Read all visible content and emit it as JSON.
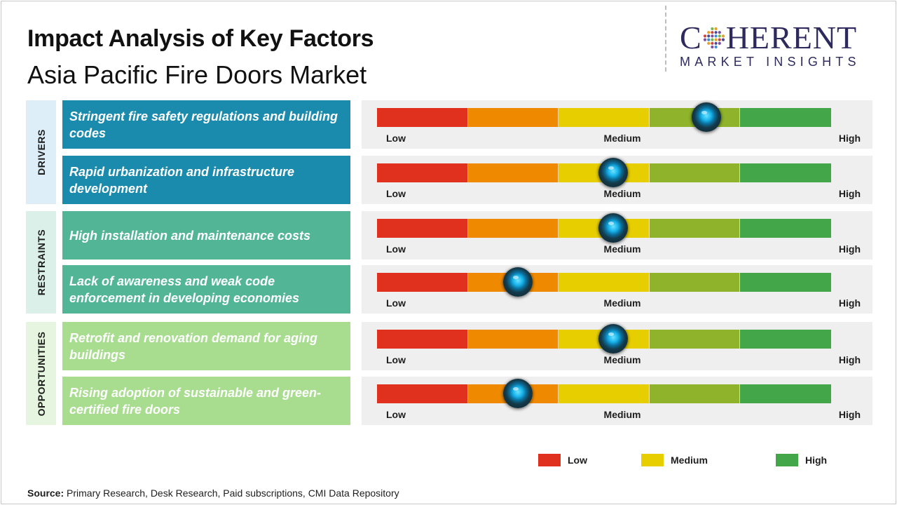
{
  "header": {
    "title": "Impact Analysis of Key Factors",
    "subtitle": "Asia Pacific Fire Doors Market"
  },
  "logo": {
    "line1_start": "C",
    "line1_end": "HERENT",
    "line2": "MARKET INSIGHTS"
  },
  "colors": {
    "drivers_category_bg": "#ddeef8",
    "drivers_factor_bg": "#1a8aad",
    "restraints_category_bg": "#dcf0ea",
    "restraints_factor_bg": "#52b596",
    "opportunities_category_bg": "#e6f5df",
    "opportunities_factor_bg": "#a8dd90",
    "gauge_segments": [
      "#e0301e",
      "#ef8a00",
      "#e7ce00",
      "#8fb32a",
      "#43a74a"
    ]
  },
  "chart_data": {
    "type": "gauge",
    "scale": [
      "Low",
      "Medium",
      "High"
    ],
    "categories": [
      {
        "name": "DRIVERS",
        "factors": [
          {
            "label": "Stringent fire safety regulations and building codes",
            "impact": 0.725
          },
          {
            "label": "Rapid urbanization and infrastructure development",
            "impact": 0.52
          }
        ]
      },
      {
        "name": "RESTRAINTS",
        "factors": [
          {
            "label": "High installation and maintenance costs",
            "impact": 0.52
          },
          {
            "label": "Lack of awareness and weak code enforcement in developing economies",
            "impact": 0.31
          }
        ]
      },
      {
        "name": "OPPORTUNITIES",
        "factors": [
          {
            "label": "Retrofit and renovation demand for aging buildings",
            "impact": 0.52
          },
          {
            "label": "Rising adoption of sustainable and green-certified fire doors",
            "impact": 0.31
          }
        ]
      }
    ],
    "legend": [
      {
        "label": "Low",
        "color": "#e0301e"
      },
      {
        "label": "Medium",
        "color": "#e7ce00"
      },
      {
        "label": "High",
        "color": "#43a74a"
      }
    ]
  },
  "source": {
    "prefix": "Source:",
    "text": " Primary Research, Desk Research, Paid subscriptions, CMI Data Repository"
  }
}
